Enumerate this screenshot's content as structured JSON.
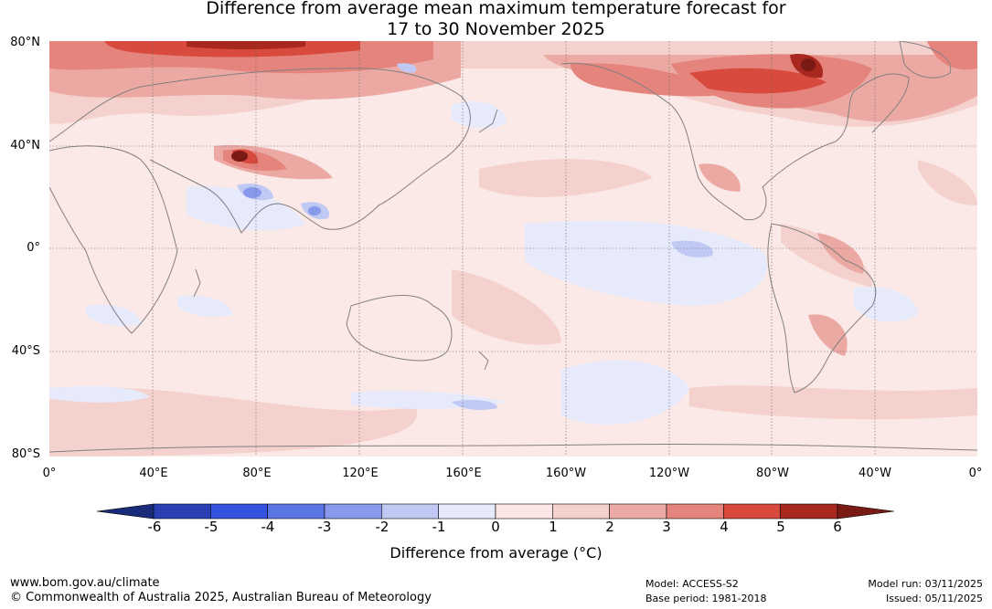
{
  "title": {
    "line1": "Difference from average mean maximum temperature forecast for",
    "line2": "17 to 30 November 2025"
  },
  "axes": {
    "lat_labels": [
      "80°N",
      "40°N",
      "0°",
      "40°S",
      "80°S"
    ],
    "lon_labels": [
      "0°",
      "40°E",
      "80°E",
      "120°E",
      "160°E",
      "160°W",
      "120°W",
      "80°W",
      "40°W",
      "0°"
    ]
  },
  "colorbar": {
    "ticks": [
      "-6",
      "-5",
      "-4",
      "-3",
      "-2",
      "-1",
      "0",
      "1",
      "2",
      "3",
      "4",
      "5",
      "6"
    ],
    "colors": [
      "#1a2b7a",
      "#2a3fb4",
      "#3552e0",
      "#5d76e6",
      "#8898ea",
      "#c0c9f3",
      "#e6eafb",
      "#fbe8e6",
      "#f5d1cd",
      "#eca9a3",
      "#e5847c",
      "#d94a3e",
      "#a8281f",
      "#7a1a14"
    ],
    "label": "Difference from average (°C)"
  },
  "footer": {
    "url": "www.bom.gov.au/climate",
    "copyright": "© Commonwealth of Australia 2025, Australian Bureau of Meteorology",
    "model": "Model: ACCESS-S2",
    "base_period": "Base period: 1981-2018",
    "model_run": "Model run: 03/11/2025",
    "issued": "Issued: 05/11/2025"
  }
}
